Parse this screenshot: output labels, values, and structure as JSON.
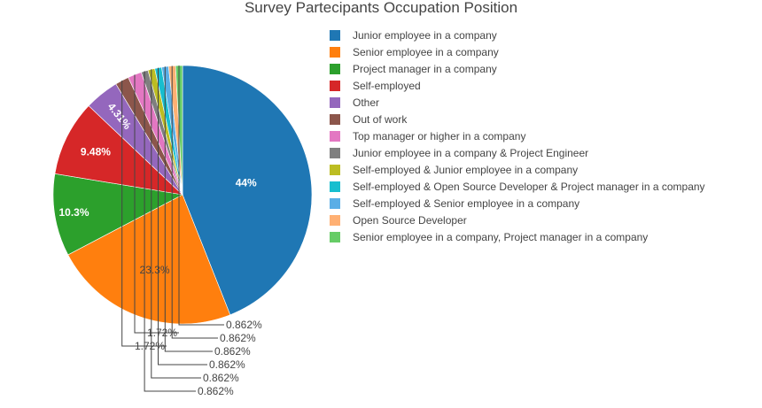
{
  "chart_data": {
    "type": "pie",
    "title": "Survey Partecipants Occupation Position",
    "legend_position": "right",
    "slices": [
      {
        "label": "Junior employee in a company",
        "value": 44,
        "display": "44%",
        "color": "#1f77b4"
      },
      {
        "label": "Senior employee in a company",
        "value": 23.3,
        "display": "23.3%",
        "color": "#ff7f0e"
      },
      {
        "label": "Project manager in a company",
        "value": 10.3,
        "display": "10.3%",
        "color": "#2ca02c"
      },
      {
        "label": "Self-employed",
        "value": 9.48,
        "display": "9.48%",
        "color": "#d62728"
      },
      {
        "label": "Other",
        "value": 4.31,
        "display": "4.31%",
        "color": "#9467bd"
      },
      {
        "label": "Out of work",
        "value": 1.72,
        "display": "1.72%",
        "color": "#8c564b"
      },
      {
        "label": "Top manager or higher in a company",
        "value": 1.72,
        "display": "1.72%",
        "color": "#e377c2"
      },
      {
        "label": "Junior employee in a company & Project Engineer",
        "value": 0.862,
        "display": "0.862%",
        "color": "#7f7f7f"
      },
      {
        "label": "Self-employed & Junior employee in a company",
        "value": 0.862,
        "display": "0.862%",
        "color": "#bcbd22"
      },
      {
        "label": "Self-employed & Open Source Developer & Project manager in a company",
        "value": 0.862,
        "display": "0.862%",
        "color": "#17becf"
      },
      {
        "label": "Self-employed & Senior employee in a company",
        "value": 0.862,
        "display": "0.862%",
        "color": "#5aaee6"
      },
      {
        "label": "Open Source Developer",
        "value": 0.862,
        "display": "0.862%",
        "color": "#ffb073"
      },
      {
        "label": "Senior employee in a company, Project manager in a company",
        "value": 0.862,
        "display": "0.862%",
        "color": "#66cc66"
      }
    ]
  }
}
